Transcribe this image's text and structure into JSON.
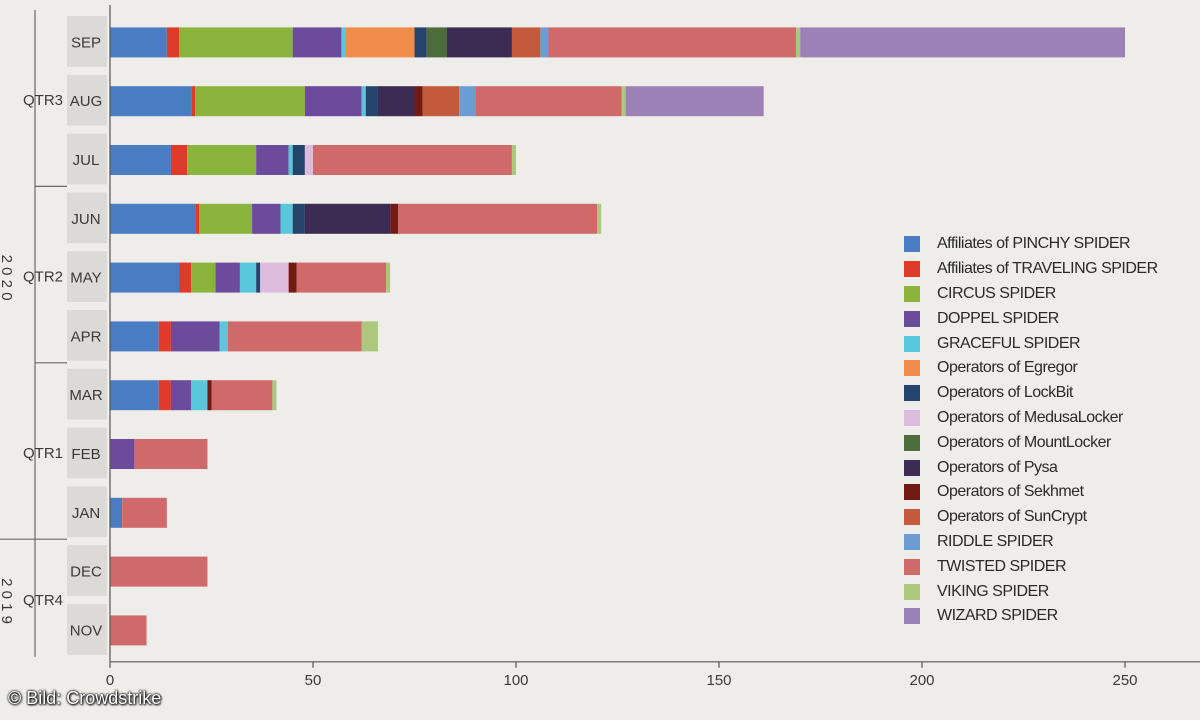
{
  "chart_data": {
    "type": "bar",
    "orientation": "horizontal",
    "stacked": true,
    "xlim": [
      0,
      250
    ],
    "x_ticks": [
      "0",
      "50",
      "100",
      "150",
      "200",
      "250"
    ],
    "legend_position": "right",
    "years": [
      {
        "label": "2 0 2 0",
        "quarters": [
          "QTR3",
          "QTR2",
          "QTR1"
        ]
      },
      {
        "label": "2 0 1 9",
        "quarters": [
          "QTR4"
        ]
      }
    ],
    "quarters": [
      {
        "label": "QTR3",
        "months": [
          "SEP",
          "AUG",
          "JUL"
        ]
      },
      {
        "label": "QTR2",
        "months": [
          "JUN",
          "MAY",
          "APR"
        ]
      },
      {
        "label": "QTR1",
        "months": [
          "MAR",
          "FEB",
          "JAN"
        ]
      },
      {
        "label": "QTR4",
        "months": [
          "DEC",
          "NOV"
        ]
      }
    ],
    "categories": [
      "SEP",
      "AUG",
      "JUL",
      "JUN",
      "MAY",
      "APR",
      "MAR",
      "FEB",
      "JAN",
      "DEC",
      "NOV"
    ],
    "series": [
      {
        "name": "Affiliates of PINCHY SPIDER",
        "color": "#4a7cc4",
        "values": [
          14,
          20,
          15,
          21,
          17,
          12,
          12,
          0,
          3,
          0,
          0
        ]
      },
      {
        "name": "Affiliates of TRAVELING SPIDER",
        "color": "#e03a2a",
        "values": [
          3,
          1,
          4,
          1,
          3,
          3,
          3,
          0,
          0,
          0,
          0
        ]
      },
      {
        "name": "CIRCUS SPIDER",
        "color": "#8ab43c",
        "values": [
          28,
          27,
          17,
          13,
          6,
          0,
          0,
          0,
          0,
          0,
          0
        ]
      },
      {
        "name": "DOPPEL SPIDER",
        "color": "#6c4a9c",
        "values": [
          12,
          14,
          8,
          7,
          6,
          12,
          5,
          6,
          0,
          0,
          0
        ]
      },
      {
        "name": "GRACEFUL SPIDER",
        "color": "#5ac8dc",
        "values": [
          1,
          1,
          1,
          3,
          4,
          2,
          4,
          0,
          0,
          0,
          0
        ]
      },
      {
        "name": "Operators of Egregor",
        "color": "#f08c4a",
        "values": [
          17,
          0,
          0,
          0,
          0,
          0,
          0,
          0,
          0,
          0,
          0
        ]
      },
      {
        "name": "Operators of LockBit",
        "color": "#24446c",
        "values": [
          3,
          3,
          3,
          3,
          1,
          0,
          0,
          0,
          0,
          0,
          0
        ]
      },
      {
        "name": "Operators of MedusaLocker",
        "color": "#dcbcdc",
        "values": [
          0,
          0,
          2,
          0,
          7,
          0,
          0,
          0,
          0,
          0,
          0
        ]
      },
      {
        "name": "Operators of MountLocker",
        "color": "#4c6c3c",
        "values": [
          5,
          0,
          0,
          0,
          0,
          0,
          0,
          0,
          0,
          0,
          0
        ]
      },
      {
        "name": "Operators of Pysa",
        "color": "#3c2c54",
        "values": [
          16,
          9,
          0,
          21,
          0,
          0,
          0,
          0,
          0,
          0,
          0
        ]
      },
      {
        "name": "Operators of Sekhmet",
        "color": "#741a14",
        "values": [
          0,
          2,
          0,
          2,
          2,
          0,
          1,
          0,
          0,
          0,
          0
        ]
      },
      {
        "name": "Operators of SunCrypt",
        "color": "#c45a3c",
        "values": [
          7,
          9,
          0,
          0,
          0,
          0,
          0,
          0,
          0,
          0,
          0
        ]
      },
      {
        "name": "RIDDLE SPIDER",
        "color": "#6c9cd4",
        "values": [
          2,
          4,
          0,
          0,
          0,
          0,
          0,
          0,
          0,
          0,
          0
        ]
      },
      {
        "name": "TWISTED SPIDER",
        "color": "#d06a6a",
        "values": [
          61,
          36,
          49,
          49,
          22,
          33,
          15,
          18,
          11,
          24,
          9
        ]
      },
      {
        "name": "VIKING SPIDER",
        "color": "#acc87c",
        "values": [
          1,
          1,
          1,
          1,
          1,
          4,
          1,
          0,
          0,
          0,
          0
        ]
      },
      {
        "name": "WIZARD SPIDER",
        "color": "#9c80b8",
        "values": [
          80,
          34,
          0,
          0,
          0,
          0,
          0,
          0,
          0,
          0,
          0
        ]
      }
    ]
  },
  "credit": "© Bild: Crowdstrike"
}
